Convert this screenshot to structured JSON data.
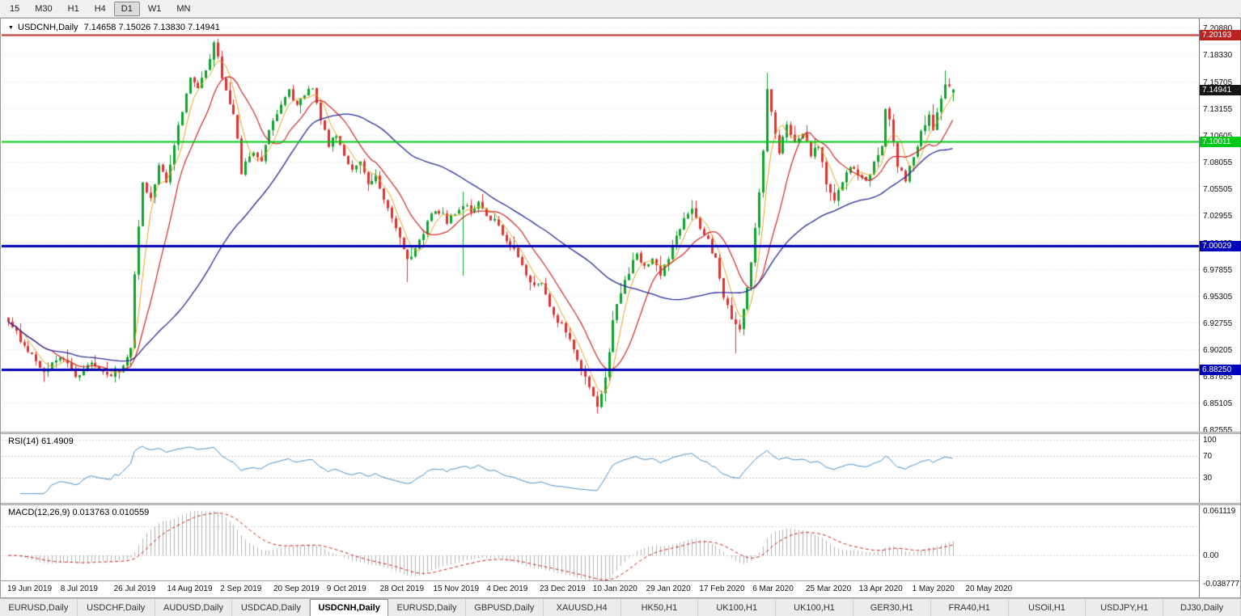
{
  "toolbar": {
    "timeframes": [
      {
        "label": "15",
        "active": false
      },
      {
        "label": "M30",
        "active": false
      },
      {
        "label": "H1",
        "active": false
      },
      {
        "label": "H4",
        "active": false
      },
      {
        "label": "D1",
        "active": true
      },
      {
        "label": "W1",
        "active": false
      },
      {
        "label": "MN",
        "active": false
      }
    ]
  },
  "chart": {
    "symbol_title": "USDCNH,Daily",
    "ohlc_text": "7.14658 7.15026 7.13830 7.14941"
  },
  "price_scale": {
    "ticks": [
      "7.20880",
      "7.18330",
      "7.15705",
      "7.13155",
      "7.10605",
      "7.08055",
      "7.05505",
      "7.02955",
      "7.00405",
      "6.97855",
      "6.95305",
      "6.92755",
      "6.90205",
      "6.87655",
      "6.85105",
      "6.82555"
    ],
    "badges": [
      {
        "value": "7.20193",
        "color": "#bb2222",
        "text": "#ffffff"
      },
      {
        "value": "7.14941",
        "color": "#161616",
        "text": "#ffffff"
      },
      {
        "value": "7.10011",
        "color": "#00c818",
        "text": "#ffffff"
      },
      {
        "value": "7.00029",
        "color": "#0000b8",
        "text": "#ffffff"
      },
      {
        "value": "6.88250",
        "color": "#0000b8",
        "text": "#ffffff"
      }
    ]
  },
  "indicators": {
    "rsi": {
      "label": "RSI(14) 61.4909",
      "period": 14,
      "value": 61.4909,
      "scale": [
        "100",
        "70",
        "30"
      ],
      "levels": [
        70,
        30
      ]
    },
    "macd": {
      "label": "MACD(12,26,9) 0.013763 0.010559",
      "main": 0.013763,
      "signal": 0.010559,
      "scale": [
        "0.061119",
        "0.00",
        "-0.038777"
      ]
    }
  },
  "time_axis": [
    "19 Jun 2019",
    "8 Jul 2019",
    "26 Jul 2019",
    "14 Aug 2019",
    "2 Sep 2019",
    "20 Sep 2019",
    "9 Oct 2019",
    "28 Oct 2019",
    "15 Nov 2019",
    "4 Dec 2019",
    "23 Dec 2019",
    "10 Jan 2020",
    "29 Jan 2020",
    "17 Feb 2020",
    "6 Mar 2020",
    "25 Mar 2020",
    "13 Apr 2020",
    "1 May 2020",
    "20 May 2020"
  ],
  "tabs": [
    {
      "label": "EURUSD,Daily",
      "active": false
    },
    {
      "label": "USDCHF,Daily",
      "active": false
    },
    {
      "label": "AUDUSD,Daily",
      "active": false
    },
    {
      "label": "USDCAD,Daily",
      "active": false
    },
    {
      "label": "USDCNH,Daily",
      "active": true
    },
    {
      "label": "EURUSD,Daily",
      "active": false
    },
    {
      "label": "GBPUSD,Daily",
      "active": false
    },
    {
      "label": "XAUUSD,H4",
      "active": false
    },
    {
      "label": "HK50,H1",
      "active": false
    },
    {
      "label": "UK100,H1",
      "active": false
    },
    {
      "label": "UK100,H1",
      "active": false
    },
    {
      "label": "GER30,H1",
      "active": false
    },
    {
      "label": "FRA40,H1",
      "active": false
    },
    {
      "label": "USOil,H1",
      "active": false
    },
    {
      "label": "USDJPY,H1",
      "active": false
    },
    {
      "label": "DJ30,Daily",
      "active": false
    }
  ],
  "chart_data": {
    "type": "candlestick",
    "symbol": "USDCNH",
    "timeframe": "Daily",
    "title": "USDCNH,Daily",
    "last_ohlc": {
      "open": 7.14658,
      "high": 7.15026,
      "low": 7.1383,
      "close": 7.14941
    },
    "y_range": [
      6.82555,
      7.2088
    ],
    "x_range": [
      "19 Jun 2019",
      "20 May 2020"
    ],
    "candle_count": 240,
    "hlines": [
      {
        "price": 7.20193,
        "color": "#bb2222",
        "width": 2
      },
      {
        "price": 7.10011,
        "color": "#00c818",
        "width": 2
      },
      {
        "price": 7.00029,
        "color": "#0000b8",
        "width": 3
      },
      {
        "price": 6.8825,
        "color": "#0000b8",
        "width": 3
      }
    ],
    "close_path": [
      [
        0,
        6.928
      ],
      [
        4,
        6.905
      ],
      [
        9,
        6.882
      ],
      [
        13,
        6.893
      ],
      [
        17,
        6.878
      ],
      [
        21,
        6.886
      ],
      [
        25,
        6.877
      ],
      [
        29,
        6.884
      ],
      [
        31,
        6.9
      ],
      [
        32,
        6.976
      ],
      [
        33,
        7.02
      ],
      [
        34,
        7.058
      ],
      [
        36,
        7.044
      ],
      [
        38,
        7.078
      ],
      [
        40,
        7.058
      ],
      [
        42,
        7.098
      ],
      [
        44,
        7.128
      ],
      [
        46,
        7.158
      ],
      [
        48,
        7.152
      ],
      [
        50,
        7.168
      ],
      [
        52,
        7.192
      ],
      [
        53,
        7.178
      ],
      [
        55,
        7.148
      ],
      [
        57,
        7.128
      ],
      [
        59,
        7.072
      ],
      [
        62,
        7.092
      ],
      [
        64,
        7.084
      ],
      [
        66,
        7.112
      ],
      [
        69,
        7.138
      ],
      [
        71,
        7.15
      ],
      [
        73,
        7.134
      ],
      [
        75,
        7.144
      ],
      [
        77,
        7.152
      ],
      [
        79,
        7.12
      ],
      [
        81,
        7.098
      ],
      [
        83,
        7.108
      ],
      [
        85,
        7.086
      ],
      [
        87,
        7.074
      ],
      [
        89,
        7.08
      ],
      [
        91,
        7.06
      ],
      [
        93,
        7.068
      ],
      [
        95,
        7.044
      ],
      [
        97,
        7.028
      ],
      [
        99,
        7.008
      ],
      [
        101,
        6.986
      ],
      [
        103,
        6.998
      ],
      [
        105,
        7.014
      ],
      [
        107,
        7.028
      ],
      [
        109,
        7.034
      ],
      [
        111,
        7.024
      ],
      [
        113,
        7.03
      ],
      [
        115,
        7.04
      ],
      [
        117,
        7.034
      ],
      [
        119,
        7.04
      ],
      [
        121,
        7.03
      ],
      [
        123,
        7.024
      ],
      [
        125,
        7.01
      ],
      [
        127,
        7.004
      ],
      [
        129,
        6.99
      ],
      [
        131,
        6.974
      ],
      [
        133,
        6.96
      ],
      [
        135,
        6.964
      ],
      [
        137,
        6.944
      ],
      [
        139,
        6.93
      ],
      [
        141,
        6.918
      ],
      [
        143,
        6.9
      ],
      [
        145,
        6.884
      ],
      [
        147,
        6.864
      ],
      [
        149,
        6.846
      ],
      [
        151,
        6.872
      ],
      [
        153,
        6.928
      ],
      [
        155,
        6.958
      ],
      [
        157,
        6.974
      ],
      [
        159,
        6.994
      ],
      [
        161,
        6.98
      ],
      [
        163,
        6.99
      ],
      [
        165,
        6.972
      ],
      [
        167,
        6.99
      ],
      [
        169,
        7.008
      ],
      [
        171,
        7.024
      ],
      [
        173,
        7.034
      ],
      [
        175,
        7.02
      ],
      [
        177,
        7.004
      ],
      [
        179,
        6.988
      ],
      [
        181,
        6.954
      ],
      [
        183,
        6.928
      ],
      [
        185,
        6.92
      ],
      [
        187,
        6.958
      ],
      [
        189,
        7.018
      ],
      [
        191,
        7.088
      ],
      [
        192,
        7.148
      ],
      [
        194,
        7.108
      ],
      [
        195,
        7.09
      ],
      [
        197,
        7.118
      ],
      [
        199,
        7.098
      ],
      [
        201,
        7.108
      ],
      [
        203,
        7.088
      ],
      [
        205,
        7.098
      ],
      [
        207,
        7.058
      ],
      [
        209,
        7.044
      ],
      [
        211,
        7.064
      ],
      [
        213,
        7.078
      ],
      [
        215,
        7.068
      ],
      [
        217,
        7.062
      ],
      [
        219,
        7.078
      ],
      [
        221,
        7.098
      ],
      [
        222,
        7.128
      ],
      [
        223,
        7.118
      ],
      [
        225,
        7.078
      ],
      [
        227,
        7.064
      ],
      [
        229,
        7.088
      ],
      [
        231,
        7.108
      ],
      [
        233,
        7.124
      ],
      [
        234,
        7.108
      ],
      [
        235,
        7.128
      ],
      [
        237,
        7.152
      ],
      [
        239,
        7.14941
      ]
    ],
    "wick_overrides": [
      {
        "i": 52,
        "high": 7.1962
      },
      {
        "i": 101,
        "low": 6.966
      },
      {
        "i": 115,
        "high": 7.052,
        "low": 6.972
      },
      {
        "i": 149,
        "low": 6.8405
      },
      {
        "i": 184,
        "low": 6.898
      },
      {
        "i": 192,
        "high": 7.1655
      },
      {
        "i": 237,
        "high": 7.168
      }
    ],
    "moving_averages": [
      {
        "period": 5,
        "color": "#e0a51e"
      },
      {
        "period": 12,
        "color": "#cf2525"
      },
      {
        "period": 45,
        "color": "#28289a"
      }
    ],
    "colors": {
      "up": "#0fa32b",
      "down": "#dd3333",
      "rsi_line": "#4a8fc7",
      "macd_hist": "#b4b4b4",
      "macd_signal": "#cc2222"
    }
  }
}
